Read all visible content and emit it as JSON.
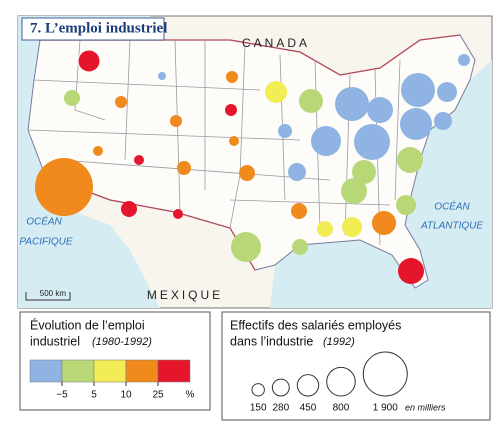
{
  "header": {
    "title": "7. L’emploi industriel"
  },
  "map": {
    "labels": {
      "canada": "CANADA",
      "mexico": "MEXIQUE",
      "pacific_1": "OCÉAN",
      "pacific_2": "PACIFIQUE",
      "atlantic_1": "OCÉAN",
      "atlantic_2": "ATLANTIQUE"
    },
    "scale": "500 km"
  },
  "legend_change": {
    "title": "Évolution de l’emploi",
    "title_2": "industriel",
    "period": "(1980-1992)",
    "colors": [
      "#8fb4e3",
      "#b8d878",
      "#f2ec55",
      "#f08a1d",
      "#e5162b"
    ],
    "ticks": [
      {
        "value": -5,
        "label": "−5"
      },
      5,
      10,
      25
    ],
    "unit": "%"
  },
  "legend_size": {
    "title": "Effectifs des salariés employés",
    "title_2": "dans l’industrie",
    "period": "(1992)",
    "sizes": [
      150,
      280,
      450,
      800,
      {
        "value": 1900,
        "label": "1 900"
      }
    ],
    "unit": "en milliers"
  }
}
